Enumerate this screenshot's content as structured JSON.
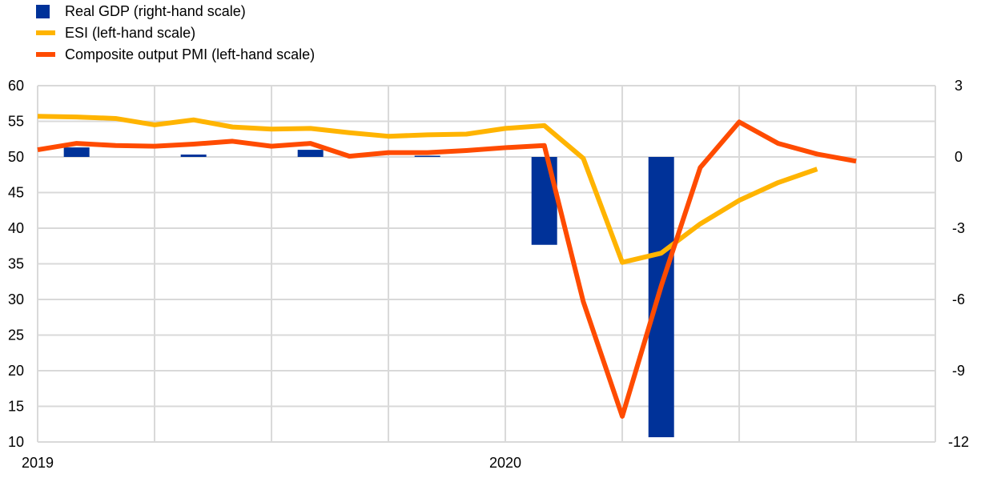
{
  "chart_data": {
    "type": "bar+line",
    "title": "",
    "legend_placement": "top-left",
    "months": [
      "2019-01",
      "2019-02",
      "2019-03",
      "2019-04",
      "2019-05",
      "2019-06",
      "2019-07",
      "2019-08",
      "2019-09",
      "2019-10",
      "2019-11",
      "2019-12",
      "2020-01",
      "2020-02",
      "2020-03",
      "2020-04",
      "2020-05",
      "2020-06",
      "2020-07",
      "2020-08",
      "2020-09",
      "2020-10",
      "2020-11",
      "2020-12"
    ],
    "x_tick_labels": [
      {
        "label": "2019",
        "month_index": 0
      },
      {
        "label": "2020",
        "month_index": 12
      }
    ],
    "left_axis": {
      "range": [
        10,
        60
      ],
      "ticks": [
        "10",
        "15",
        "20",
        "25",
        "30",
        "35",
        "40",
        "45",
        "50",
        "55",
        "60"
      ]
    },
    "right_axis": {
      "range": [
        -12,
        3
      ],
      "ticks": [
        "-12",
        "-9",
        "-6",
        "-3",
        "0",
        "3"
      ]
    },
    "grid": true,
    "series": [
      {
        "name": "Real GDP (right-hand scale)",
        "type": "bar",
        "axis": "right",
        "color": "#003299",
        "categories": [
          "2019 Q1",
          "2019 Q2",
          "2019 Q3",
          "2019 Q4",
          "2020 Q1",
          "2020 Q2"
        ],
        "month_index": [
          1,
          4,
          7,
          10,
          13,
          16
        ],
        "values": [
          0.4,
          0.1,
          0.3,
          0.05,
          -3.7,
          -11.8
        ]
      },
      {
        "name": "ESI (left-hand scale)",
        "type": "line",
        "axis": "left",
        "color": "#FFB400",
        "values": [
          55.7,
          55.6,
          55.4,
          54.5,
          55.2,
          54.2,
          53.9,
          54.0,
          53.4,
          52.9,
          53.1,
          53.2,
          54.0,
          54.4,
          49.8,
          35.2,
          36.5,
          40.6,
          43.9,
          46.4,
          48.3
        ]
      },
      {
        "name": "Composite output PMI (left-hand scale)",
        "type": "line",
        "axis": "left",
        "color": "#FF4B00",
        "values": [
          51.0,
          51.9,
          51.6,
          51.5,
          51.8,
          52.2,
          51.5,
          51.9,
          50.1,
          50.6,
          50.6,
          50.9,
          51.3,
          51.6,
          29.7,
          13.6,
          31.9,
          48.5,
          54.9,
          51.9,
          50.4,
          49.4
        ]
      }
    ]
  }
}
